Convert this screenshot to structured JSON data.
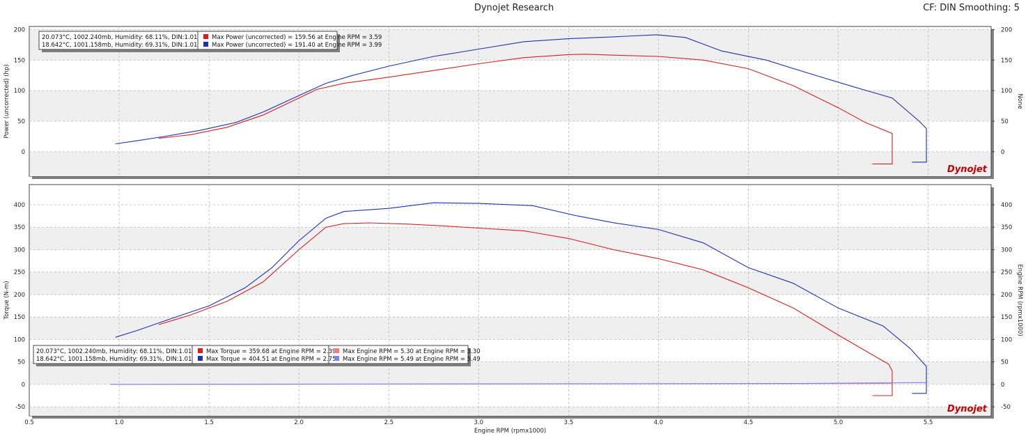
{
  "header": {
    "title": "Dynojet Research",
    "right": "CF: DIN Smoothing: 5"
  },
  "logo_text": "Dynojet",
  "colors": {
    "run1": "#d42020",
    "run2": "#2030b0",
    "run1_light": "#f08080",
    "run2_light": "#8080f0"
  },
  "chart_data": [
    {
      "type": "line",
      "ylabel": "Power (uncorrected) (hp)",
      "ylabel_right": "None",
      "ylim": [
        -40,
        205
      ],
      "yticks": [
        0,
        50,
        100,
        150,
        200
      ],
      "xlim": [
        0.5,
        5.85
      ],
      "grid": true,
      "legend": {
        "placement": "top-left",
        "rows": [
          {
            "conditions": "20.073°C, 1002.240mb, Humidity: 68.11%, DIN:1.01",
            "entries": [
              "Max Power (uncorrected) = 159.56 at Engine RPM = 3.59"
            ]
          },
          {
            "conditions": "18.642°C, 1001.158mb, Humidity: 69.31%, DIN:1.01",
            "entries": [
              "Max Power (uncorrected) = 191.40 at Engine RPM = 3.99"
            ]
          }
        ]
      },
      "series": [
        {
          "color": "run1",
          "x": [
            1.22,
            1.4,
            1.6,
            1.8,
            2.0,
            2.1,
            2.25,
            2.5,
            2.75,
            3.0,
            3.25,
            3.5,
            3.59,
            3.75,
            4.0,
            4.25,
            4.5,
            4.75,
            5.0,
            5.15,
            5.3,
            5.3,
            5.3,
            5.19
          ],
          "y": [
            22,
            28,
            40,
            60,
            88,
            102,
            112,
            122,
            133,
            144,
            154,
            159,
            159.6,
            158,
            156,
            150,
            136,
            108,
            72,
            48,
            30,
            10,
            -20,
            -20
          ]
        },
        {
          "color": "run2",
          "x": [
            0.98,
            1.1,
            1.25,
            1.45,
            1.65,
            1.8,
            2.0,
            2.15,
            2.3,
            2.5,
            2.75,
            3.0,
            3.25,
            3.5,
            3.75,
            3.99,
            4.15,
            4.35,
            4.6,
            4.85,
            5.1,
            5.3,
            5.45,
            5.49,
            5.49,
            5.49,
            5.41
          ],
          "y": [
            13,
            18,
            25,
            35,
            48,
            65,
            92,
            112,
            125,
            140,
            156,
            168,
            180,
            185,
            188,
            191.4,
            187,
            165,
            150,
            127,
            105,
            88,
            50,
            38,
            10,
            -17,
            -17
          ]
        }
      ]
    },
    {
      "type": "line",
      "ylabel": "Torque (N-m)",
      "ylabel_right": "Engine RPM (rpmx1000)",
      "xlabel": "Engine RPM (rpmx1000)",
      "ylim": [
        -70,
        445
      ],
      "yticks": [
        -50,
        0,
        50,
        100,
        150,
        200,
        250,
        300,
        350,
        400
      ],
      "xlim": [
        0.5,
        5.85
      ],
      "xticks": [
        0.5,
        1.0,
        1.5,
        2.0,
        2.5,
        3.0,
        3.5,
        4.0,
        4.5,
        5.0,
        5.5
      ],
      "grid": true,
      "legend": {
        "placement": "bottom-left",
        "rows": [
          {
            "conditions": "20.073°C, 1002.240mb, Humidity: 68.11%, DIN:1.01",
            "entries": [
              "Max Torque = 359.68 at Engine RPM = 2.39",
              "Max Engine RPM = 5.30 at Engine RPM = 5.30"
            ]
          },
          {
            "conditions": "18.642°C, 1001.158mb, Humidity: 69.31%, DIN:1.01",
            "entries": [
              "Max Torque = 404.51 at Engine RPM = 2.75",
              "Max Engine RPM = 5.49 at Engine RPM = 5.49"
            ]
          }
        ]
      },
      "series": [
        {
          "color": "run1",
          "x": [
            1.22,
            1.4,
            1.6,
            1.8,
            2.0,
            2.15,
            2.25,
            2.39,
            2.6,
            2.8,
            3.0,
            3.25,
            3.5,
            3.75,
            4.0,
            4.25,
            4.5,
            4.75,
            5.0,
            5.15,
            5.28,
            5.3,
            5.3,
            5.19
          ],
          "y": [
            133,
            155,
            185,
            228,
            300,
            350,
            358,
            359.7,
            357,
            353,
            348,
            342,
            325,
            300,
            280,
            255,
            215,
            170,
            110,
            75,
            45,
            30,
            -25,
            -25
          ]
        },
        {
          "color": "run1_light",
          "x": [
            0.95,
            5.3
          ],
          "y": [
            0,
            2
          ]
        },
        {
          "color": "run2",
          "x": [
            0.98,
            1.1,
            1.3,
            1.5,
            1.7,
            1.85,
            2.0,
            2.15,
            2.25,
            2.5,
            2.75,
            3.0,
            3.3,
            3.55,
            3.75,
            4.0,
            4.25,
            4.5,
            4.75,
            5.0,
            5.25,
            5.4,
            5.49,
            5.49,
            5.41
          ],
          "y": [
            105,
            120,
            148,
            175,
            215,
            260,
            320,
            370,
            385,
            392,
            404.5,
            403,
            398,
            375,
            360,
            345,
            315,
            260,
            225,
            170,
            130,
            80,
            40,
            -20,
            -20
          ]
        },
        {
          "color": "run2_light",
          "x": [
            0.95,
            4.8,
            5.49
          ],
          "y": [
            0,
            2,
            4
          ]
        }
      ]
    }
  ]
}
